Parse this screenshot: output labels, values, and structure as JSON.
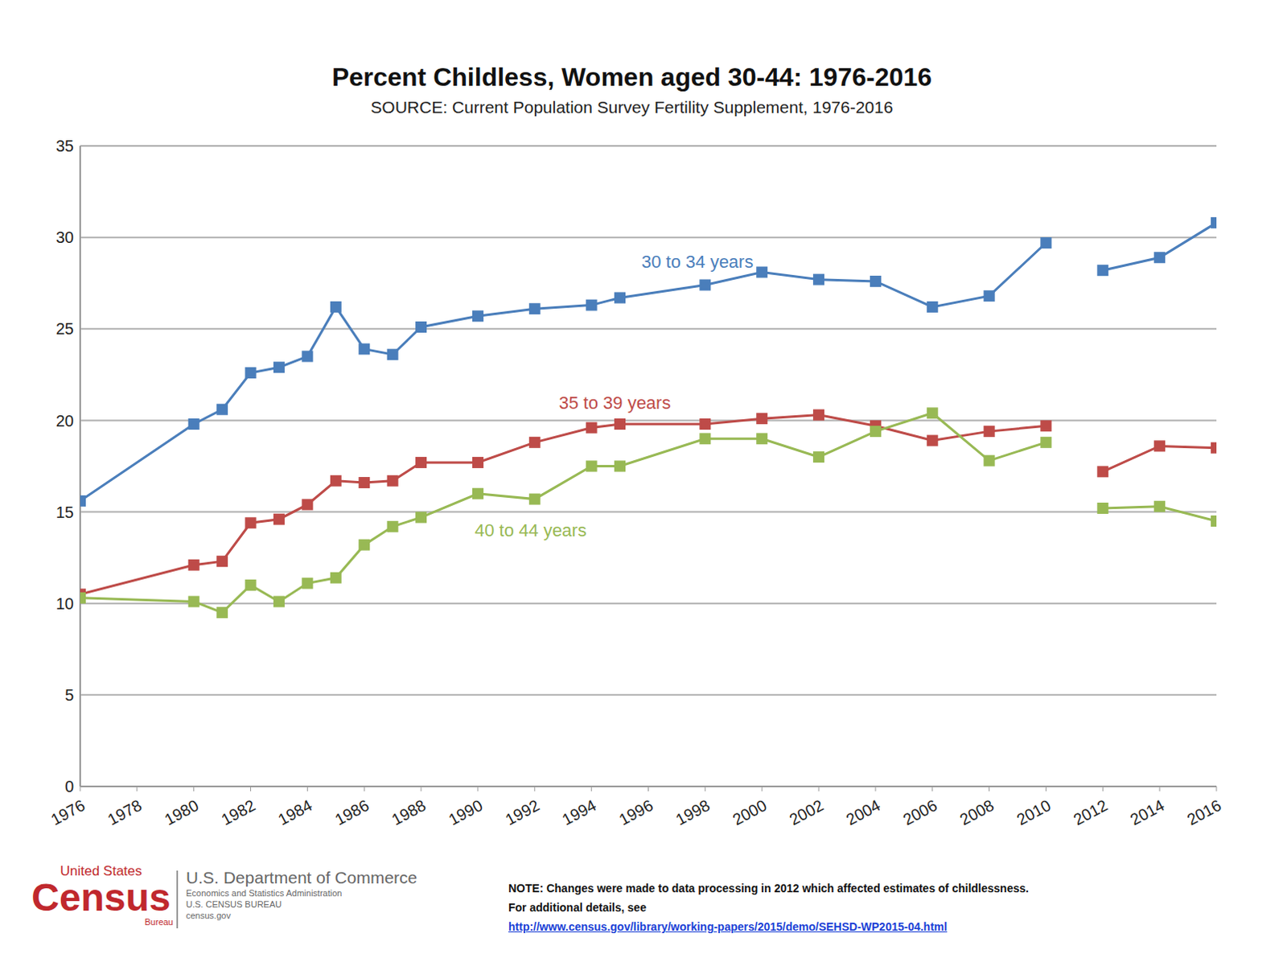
{
  "chart_data": {
    "type": "line",
    "title": "Percent Childless, Women aged 30-44: 1976-2016",
    "subtitle": "SOURCE: Current Population Survey Fertility Supplement, 1976-2016",
    "x": [
      1976,
      1980,
      1981,
      1982,
      1983,
      1984,
      1985,
      1986,
      1987,
      1988,
      1990,
      1992,
      1994,
      1995,
      1998,
      2000,
      2002,
      2004,
      2006,
      2008,
      2010,
      2011,
      2012,
      2014,
      2016
    ],
    "series": [
      {
        "name": "30 to 34 years",
        "color": "#4a7ebb",
        "marker": "square",
        "values": [
          15.6,
          19.8,
          20.6,
          22.6,
          22.9,
          23.5,
          26.2,
          23.9,
          23.6,
          25.1,
          25.7,
          26.1,
          26.3,
          26.7,
          27.4,
          28.1,
          27.7,
          27.6,
          26.2,
          26.8,
          29.7,
          null,
          28.2,
          28.9,
          30.8
        ]
      },
      {
        "name": "35 to 39 years",
        "color": "#be4b48",
        "marker": "square",
        "values": [
          10.5,
          12.1,
          12.3,
          14.4,
          14.6,
          15.4,
          16.7,
          16.6,
          16.7,
          17.7,
          17.7,
          18.8,
          19.6,
          19.8,
          19.8,
          20.1,
          20.3,
          19.7,
          18.9,
          19.4,
          19.7,
          null,
          17.2,
          18.6,
          18.5
        ]
      },
      {
        "name": "40 to 44 years",
        "color": "#98b954",
        "marker": "square",
        "values": [
          10.3,
          10.1,
          9.5,
          11.0,
          10.1,
          11.1,
          11.4,
          13.2,
          14.2,
          14.7,
          16.0,
          15.7,
          17.5,
          17.5,
          19.0,
          19.0,
          18.0,
          19.4,
          20.4,
          17.8,
          18.8,
          null,
          15.2,
          15.3,
          14.5
        ]
      }
    ],
    "xlim": [
      1976,
      2016
    ],
    "xticks": [
      1976,
      1978,
      1980,
      1982,
      1984,
      1986,
      1988,
      1990,
      1992,
      1994,
      1996,
      1998,
      2000,
      2002,
      2004,
      2006,
      2008,
      2010,
      2012,
      2014,
      2016
    ],
    "ylim": [
      0,
      35
    ],
    "yticks": [
      0,
      5,
      10,
      15,
      20,
      25,
      30,
      35
    ],
    "grid": true,
    "note": [
      "NOTE: Changes were made to data processing in 2012 which affected estimates of childlessness.",
      "For additional details, see"
    ],
    "note_link": "http://www.census.gov/library/working-papers/2015/demo/SEHSD-WP2015-04.html",
    "logo": {
      "top": "United States",
      "main": "Census",
      "bottom": "Bureau",
      "department": "U.S. Department of Commerce",
      "lines": [
        "Economics and Statistics Administration",
        "U.S. CENSUS BUREAU",
        "census.gov"
      ]
    }
  }
}
